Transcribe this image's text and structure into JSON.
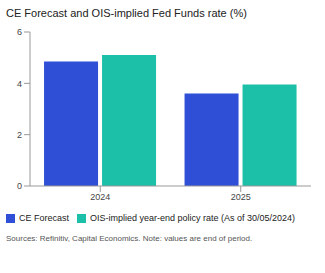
{
  "chart_data": {
    "type": "bar",
    "title": "CE Forecast and OIS-implied Fed Funds rate (%)",
    "categories": [
      "2024",
      "2025"
    ],
    "series": [
      {
        "name": "CE Forecast",
        "color": "#2f4fd6",
        "values": [
          4.85,
          3.6
        ]
      },
      {
        "name": "OIS-implied year-end policy rate (As of 30/05/2024)",
        "color": "#1cbfa8",
        "values": [
          5.1,
          3.95
        ]
      }
    ],
    "ylim": [
      0,
      6
    ],
    "yticks": [
      0,
      2,
      4,
      6
    ],
    "grid": false,
    "legend": "bottom",
    "note": "Sources: Refinitiv, Capital Economics. Note: values are end of period."
  }
}
